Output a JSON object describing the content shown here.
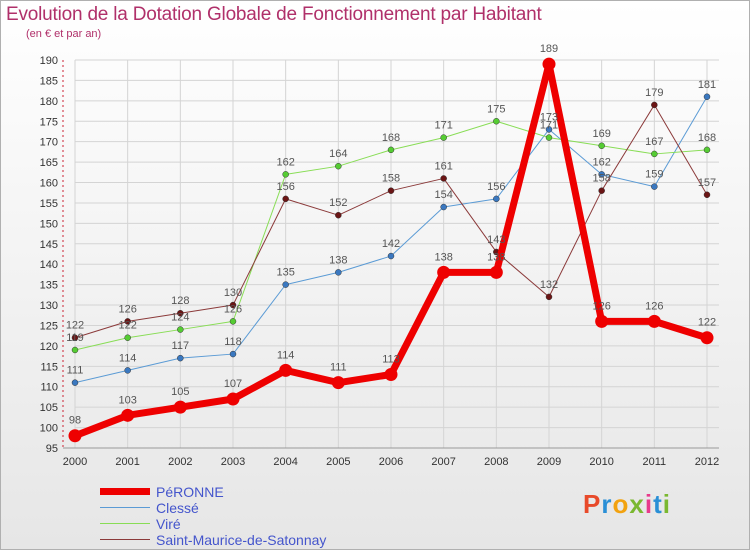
{
  "header": {
    "title": "Evolution de la Dotation Globale de Fonctionnement par Habitant",
    "subtitle": "(en € et par an)"
  },
  "watermark": {
    "text": "Proxiti",
    "colors": [
      "#e84a2a",
      "#2a8fd6",
      "#f2a20f",
      "#7ab830",
      "#e83a8c",
      "#2a8fd6",
      "#7ab830"
    ]
  },
  "chart_data": {
    "type": "line",
    "title": "Evolution de la Dotation Globale de Fonctionnement par Habitant",
    "subtitle": "(en € et par an)",
    "xlabel": "",
    "ylabel": "",
    "categories": [
      "2000",
      "2001",
      "2002",
      "2003",
      "2004",
      "2005",
      "2006",
      "2007",
      "2008",
      "2009",
      "2010",
      "2011",
      "2012"
    ],
    "ylim": [
      95,
      190
    ],
    "ytick_step": 5,
    "grid": true,
    "legend_position": "bottom-left",
    "series": [
      {
        "name": "Clessé",
        "color": "#5b9bd5",
        "marker": "#3a78c0",
        "width": 1,
        "values": [
          111,
          114,
          117,
          118,
          135,
          138,
          142,
          154,
          156,
          173,
          162,
          159,
          181
        ]
      },
      {
        "name": "Viré",
        "color": "#88dd55",
        "marker": "#55cc33",
        "width": 1,
        "values": [
          119,
          122,
          124,
          126,
          162,
          164,
          168,
          171,
          175,
          171,
          169,
          167,
          168
        ]
      },
      {
        "name": "Saint-Maurice-de-Satonnay",
        "color": "#8b3a3a",
        "marker": "#6b1515",
        "width": 1,
        "values": [
          122,
          126,
          128,
          130,
          156,
          152,
          158,
          161,
          143,
          132,
          158,
          179,
          157
        ]
      },
      {
        "name": "PéRONNE",
        "color": "#ee0000",
        "marker": "#ee0000",
        "width": 7,
        "values": [
          98,
          103,
          105,
          107,
          114,
          111,
          113,
          138,
          138,
          189,
          126,
          126,
          122
        ]
      }
    ],
    "labels": [
      {
        "series": "PéRONNE",
        "values": [
          "98",
          "103",
          "105",
          "107",
          "114",
          "111",
          "113",
          "138",
          "138",
          "189",
          "126",
          "126",
          "122"
        ]
      },
      {
        "series": "Clessé",
        "values": [
          "111",
          "114",
          "117",
          "118",
          "135",
          "138",
          "142",
          "154",
          "156",
          "173",
          "162",
          "159",
          "181"
        ]
      },
      {
        "series": "Viré",
        "values": [
          "119",
          "122",
          "124",
          "126",
          "162",
          "164",
          "168",
          "171",
          "175",
          "171",
          "169",
          "167",
          "168"
        ]
      },
      {
        "series": "Saint-Maurice-de-Satonnay",
        "values": [
          "122",
          "126",
          "128",
          "130",
          "156",
          "152",
          "158",
          "161",
          "143",
          "132",
          "158",
          "179",
          "157"
        ]
      }
    ]
  },
  "legend": {
    "items": [
      {
        "label": "PéRONNE",
        "color": "#ee0000",
        "thickness": 7
      },
      {
        "label": "Clessé",
        "color": "#5b9bd5",
        "thickness": 1
      },
      {
        "label": "Viré",
        "color": "#88dd55",
        "thickness": 1
      },
      {
        "label": "Saint-Maurice-de-Satonnay",
        "color": "#8b3a3a",
        "thickness": 1
      }
    ]
  }
}
